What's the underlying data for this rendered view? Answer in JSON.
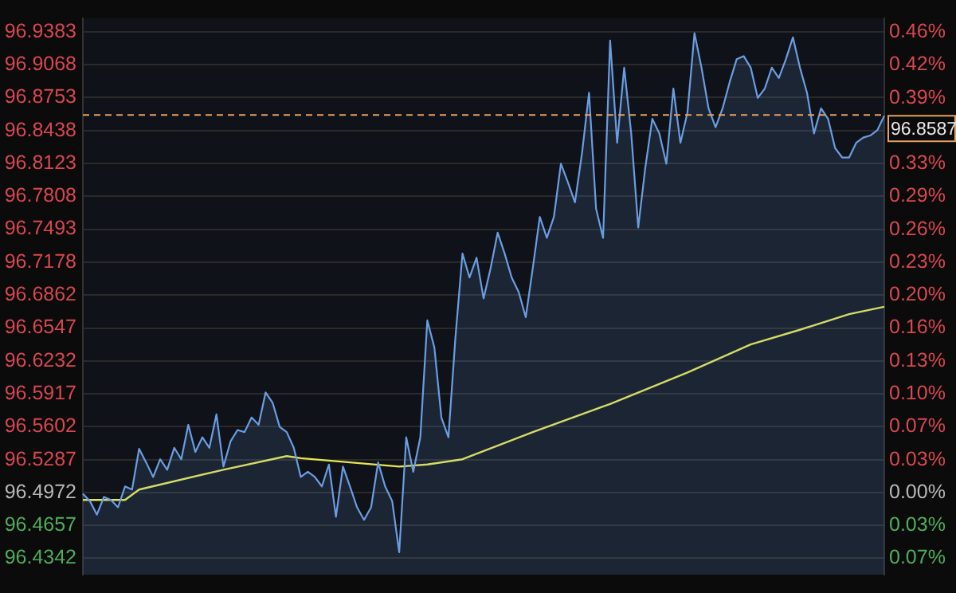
{
  "chart_data": {
    "type": "area",
    "categories": [
      null,
      null,
      null,
      null,
      null,
      null,
      null,
      null,
      null,
      null,
      null,
      null,
      null,
      null,
      null,
      null,
      null,
      null,
      null,
      null,
      null,
      null,
      null,
      null,
      null,
      null,
      null,
      null,
      null,
      null,
      null,
      null,
      null,
      null,
      null,
      null,
      null,
      null,
      null,
      null,
      null,
      null,
      null,
      null,
      null,
      null,
      null,
      null,
      null,
      null,
      null,
      null,
      null,
      null,
      null,
      null,
      null,
      null,
      null,
      null,
      null,
      null,
      null,
      null,
      null,
      null,
      null,
      null,
      null,
      null,
      null,
      null,
      null,
      null,
      null,
      null,
      null,
      null,
      null,
      null,
      null,
      null,
      null,
      null,
      null,
      null,
      null,
      null,
      null,
      null,
      null,
      null,
      null,
      null,
      null,
      null,
      null,
      null,
      null,
      null,
      null,
      null,
      null,
      null,
      null,
      null,
      null,
      null,
      null,
      null,
      null,
      null,
      null,
      null,
      null
    ],
    "series": [
      {
        "color": "#6b9de3",
        "values": [
          96.496,
          96.489,
          96.476,
          96.493,
          96.49,
          96.483,
          96.503,
          96.5,
          96.539,
          96.526,
          96.512,
          96.529,
          96.519,
          96.54,
          96.529,
          96.562,
          96.536,
          96.55,
          96.54,
          96.572,
          96.522,
          96.546,
          96.557,
          96.555,
          96.569,
          96.562,
          96.593,
          96.583,
          96.56,
          96.555,
          96.54,
          96.512,
          96.517,
          96.512,
          96.503,
          96.524,
          96.474,
          96.522,
          96.503,
          96.483,
          96.471,
          96.483,
          96.526,
          96.503,
          96.489,
          96.44,
          96.55,
          96.517,
          96.55,
          96.662,
          96.636,
          96.569,
          96.55,
          96.646,
          96.726,
          96.703,
          96.722,
          96.683,
          96.712,
          96.746,
          96.726,
          96.703,
          96.689,
          96.665,
          96.712,
          96.761,
          96.741,
          96.761,
          96.812,
          96.794,
          96.775,
          96.822,
          96.88,
          96.769,
          96.741,
          96.93,
          96.832,
          96.904,
          96.841,
          96.751,
          96.808,
          96.855,
          96.841,
          96.812,
          96.884,
          96.832,
          96.861,
          96.937,
          96.904,
          96.865,
          96.847,
          96.865,
          96.89,
          96.912,
          96.915,
          96.904,
          96.875,
          96.884,
          96.904,
          96.894,
          96.912,
          96.933,
          96.904,
          96.88,
          96.841,
          96.865,
          96.855,
          96.827,
          96.818,
          96.818,
          96.832,
          96.837,
          96.839,
          96.844,
          96.858
        ]
      },
      {
        "type": "line",
        "color": "#e6e650",
        "values": [
          96.49,
          null,
          null,
          null,
          null,
          null,
          96.49,
          null,
          96.5,
          null,
          null,
          null,
          null,
          null,
          null,
          null,
          null,
          null,
          null,
          null,
          96.519,
          null,
          null,
          null,
          null,
          null,
          null,
          null,
          null,
          96.532,
          null,
          96.53,
          null,
          null,
          null,
          null,
          null,
          null,
          96.526,
          null,
          null,
          null,
          null,
          null,
          null,
          96.522,
          null,
          null,
          null,
          96.524,
          null,
          null,
          null,
          null,
          96.529,
          null,
          null,
          null,
          null,
          null,
          null,
          null,
          null,
          null,
          96.555,
          null,
          null,
          null,
          null,
          null,
          null,
          null,
          null,
          null,
          null,
          96.582,
          null,
          null,
          null,
          null,
          null,
          null,
          null,
          null,
          null,
          null,
          96.612,
          null,
          null,
          null,
          null,
          null,
          null,
          null,
          null,
          96.639,
          null,
          null,
          null,
          null,
          null,
          null,
          96.653,
          null,
          null,
          null,
          null,
          null,
          null,
          96.668,
          null,
          null,
          null,
          null,
          96.675
        ]
      }
    ],
    "ylim": [
      96.4185,
      96.9512
    ],
    "yticks": [
      96.4342,
      96.4657,
      96.4972,
      96.5287,
      96.5602,
      96.5917,
      96.6232,
      96.6547,
      96.6862,
      96.7178,
      96.7493,
      96.7808,
      96.8123,
      96.8438,
      96.8753,
      96.9068,
      96.9383
    ],
    "y2lim": [
      -0.0816,
      0.4705
    ],
    "y2ticks": [
      {
        "value": -0.0653,
        "label": "0.07%"
      },
      {
        "value": -0.0326,
        "label": "0.03%"
      },
      {
        "value": 0,
        "label": "0.00%"
      },
      {
        "value": 0.0326,
        "label": "0.03%"
      },
      {
        "value": 0.0653,
        "label": "0.07%"
      },
      {
        "value": 0.0979,
        "label": "0.10%"
      },
      {
        "value": 0.1306,
        "label": "0.13%"
      },
      {
        "value": 0.1632,
        "label": "0.16%"
      },
      {
        "value": 0.1959,
        "label": "0.20%"
      },
      {
        "value": 0.2285,
        "label": "0.23%"
      },
      {
        "value": 0.2612,
        "label": "0.26%"
      },
      {
        "value": 0.2938,
        "label": "0.29%"
      },
      {
        "value": 0.3264,
        "label": "0.33%"
      },
      {
        "value": 0.3591,
        "label": null
      },
      {
        "value": 0.3917,
        "label": "0.39%"
      },
      {
        "value": 0.4244,
        "label": "0.42%"
      },
      {
        "value": 0.457,
        "label": "0.46%"
      }
    ],
    "ref_lines": [
      {
        "axis": "y",
        "value": 96.8587,
        "label": "96.8587",
        "color": "#e8a060",
        "line_style": "dashed"
      }
    ],
    "grid": "y"
  }
}
